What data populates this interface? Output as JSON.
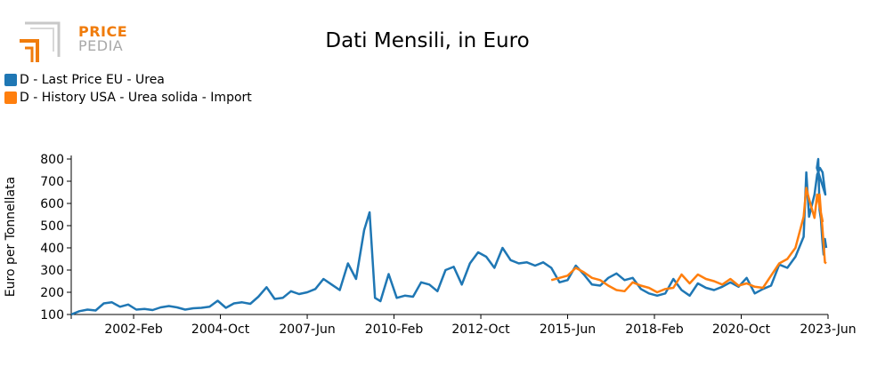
{
  "logo": {
    "line1": "PRICE",
    "line2": "PEDIA",
    "accent": "#f07c0c",
    "grey": "#a9a9a9"
  },
  "chart_data": {
    "type": "line",
    "title": "Dati Mensili, in Euro",
    "xlabel": "",
    "ylabel": "Euro per Tonnellata",
    "ylim": [
      100,
      800
    ],
    "yticks": [
      100,
      200,
      300,
      400,
      500,
      600,
      700,
      800
    ],
    "xlim": [
      "2000-03",
      "2023-06"
    ],
    "xticks": [
      {
        "label": "2002-Feb",
        "x": "2002-02"
      },
      {
        "label": "2004-Oct",
        "x": "2004-10"
      },
      {
        "label": "2007-Jun",
        "x": "2007-06"
      },
      {
        "label": "2010-Feb",
        "x": "2010-02"
      },
      {
        "label": "2012-Oct",
        "x": "2012-10"
      },
      {
        "label": "2015-Jun",
        "x": "2015-06"
      },
      {
        "label": "2018-Feb",
        "x": "2018-02"
      },
      {
        "label": "2020-Oct",
        "x": "2020-10"
      },
      {
        "label": "2023-Jun",
        "x": "2023-06"
      }
    ],
    "legend_position": "top-left",
    "grid": false,
    "series": [
      {
        "name": "D - Last Price EU - Urea",
        "color": "#1f77b4",
        "points": [
          [
            "2000-03",
            100
          ],
          [
            "2000-06",
            115
          ],
          [
            "2000-09",
            122
          ],
          [
            "2000-12",
            118
          ],
          [
            "2001-03",
            150
          ],
          [
            "2001-06",
            155
          ],
          [
            "2001-09",
            135
          ],
          [
            "2001-12",
            145
          ],
          [
            "2002-03",
            122
          ],
          [
            "2002-06",
            125
          ],
          [
            "2002-09",
            120
          ],
          [
            "2002-12",
            132
          ],
          [
            "2003-03",
            138
          ],
          [
            "2003-06",
            132
          ],
          [
            "2003-09",
            122
          ],
          [
            "2003-12",
            128
          ],
          [
            "2004-03",
            130
          ],
          [
            "2004-06",
            135
          ],
          [
            "2004-09",
            162
          ],
          [
            "2004-12",
            130
          ],
          [
            "2005-03",
            150
          ],
          [
            "2005-06",
            155
          ],
          [
            "2005-09",
            148
          ],
          [
            "2005-12",
            180
          ],
          [
            "2006-03",
            223
          ],
          [
            "2006-06",
            170
          ],
          [
            "2006-09",
            175
          ],
          [
            "2006-12",
            205
          ],
          [
            "2007-03",
            192
          ],
          [
            "2007-06",
            200
          ],
          [
            "2007-09",
            215
          ],
          [
            "2007-12",
            260
          ],
          [
            "2008-03",
            235
          ],
          [
            "2008-06",
            210
          ],
          [
            "2008-09",
            330
          ],
          [
            "2008-12",
            260
          ],
          [
            "2009-03",
            480
          ],
          [
            "2009-05",
            560
          ],
          [
            "2009-07",
            175
          ],
          [
            "2009-09",
            160
          ],
          [
            "2009-12",
            282
          ],
          [
            "2010-03",
            175
          ],
          [
            "2010-06",
            185
          ],
          [
            "2010-09",
            180
          ],
          [
            "2010-12",
            245
          ],
          [
            "2011-03",
            235
          ],
          [
            "2011-06",
            205
          ],
          [
            "2011-09",
            300
          ],
          [
            "2011-12",
            315
          ],
          [
            "2012-03",
            235
          ],
          [
            "2012-06",
            330
          ],
          [
            "2012-09",
            380
          ],
          [
            "2012-12",
            360
          ],
          [
            "2013-03",
            310
          ],
          [
            "2013-06",
            400
          ],
          [
            "2013-09",
            345
          ],
          [
            "2013-12",
            330
          ],
          [
            "2014-03",
            335
          ],
          [
            "2014-06",
            320
          ],
          [
            "2014-09",
            335
          ],
          [
            "2014-12",
            310
          ],
          [
            "2015-03",
            245
          ],
          [
            "2015-06",
            255
          ],
          [
            "2015-09",
            320
          ],
          [
            "2015-12",
            280
          ],
          [
            "2016-03",
            235
          ],
          [
            "2016-06",
            230
          ],
          [
            "2016-09",
            265
          ],
          [
            "2016-12",
            285
          ],
          [
            "2017-03",
            255
          ],
          [
            "2017-06",
            265
          ],
          [
            "2017-09",
            215
          ],
          [
            "2017-12",
            195
          ],
          [
            "2018-03",
            185
          ],
          [
            "2018-06",
            195
          ],
          [
            "2018-09",
            260
          ],
          [
            "2018-12",
            210
          ],
          [
            "2019-03",
            185
          ],
          [
            "2019-06",
            240
          ],
          [
            "2019-09",
            220
          ],
          [
            "2019-12",
            210
          ],
          [
            "2020-03",
            225
          ],
          [
            "2020-06",
            245
          ],
          [
            "2020-09",
            225
          ],
          [
            "2020-12",
            265
          ],
          [
            "2021-03",
            195
          ],
          [
            "2021-06",
            215
          ],
          [
            "2021-09",
            230
          ],
          [
            "2021-12",
            325
          ],
          [
            "2022-03",
            310
          ],
          [
            "2022-06",
            360
          ],
          [
            "2022-09",
            450
          ],
          [
            "2022-10",
            740
          ],
          [
            "2022-11",
            540
          ],
          [
            "2023-01",
            640
          ],
          [
            "2023-02",
            730
          ],
          [
            "2023-03",
            760
          ],
          [
            "2023-04",
            740
          ],
          [
            "2023-05",
            640
          ],
          [
            "2023-06",
            760
          ],
          [
            "2023-07",
            800
          ],
          [
            "2023-08",
            570
          ],
          [
            "2023-09",
            530
          ],
          [
            "2023-10",
            440
          ],
          [
            "2023-11",
            370
          ],
          [
            "2023-12",
            440
          ],
          [
            "2024-01",
            400
          ]
        ]
      },
      {
        "name": "D - History USA - Urea solida - Import",
        "color": "#ff7f0e",
        "points": [
          [
            "2014-12",
            255
          ],
          [
            "2015-03",
            265
          ],
          [
            "2015-06",
            275
          ],
          [
            "2015-09",
            310
          ],
          [
            "2015-12",
            290
          ],
          [
            "2016-03",
            265
          ],
          [
            "2016-06",
            255
          ],
          [
            "2016-09",
            230
          ],
          [
            "2016-12",
            210
          ],
          [
            "2017-03",
            205
          ],
          [
            "2017-06",
            245
          ],
          [
            "2017-09",
            230
          ],
          [
            "2017-12",
            220
          ],
          [
            "2018-03",
            200
          ],
          [
            "2018-06",
            215
          ],
          [
            "2018-09",
            220
          ],
          [
            "2018-12",
            280
          ],
          [
            "2019-03",
            240
          ],
          [
            "2019-06",
            280
          ],
          [
            "2019-09",
            260
          ],
          [
            "2019-12",
            250
          ],
          [
            "2020-03",
            235
          ],
          [
            "2020-06",
            260
          ],
          [
            "2020-09",
            230
          ],
          [
            "2020-12",
            240
          ],
          [
            "2021-03",
            225
          ],
          [
            "2021-06",
            220
          ],
          [
            "2021-09",
            275
          ],
          [
            "2021-12",
            330
          ],
          [
            "2022-03",
            350
          ],
          [
            "2022-06",
            400
          ],
          [
            "2022-09",
            540
          ],
          [
            "2022-10",
            670
          ],
          [
            "2022-11",
            620
          ],
          [
            "2023-01",
            535
          ],
          [
            "2023-02",
            640
          ],
          [
            "2023-04",
            520
          ],
          [
            "2023-06",
            620
          ],
          [
            "2023-08",
            640
          ],
          [
            "2023-09",
            560
          ],
          [
            "2023-10",
            500
          ],
          [
            "2023-11",
            420
          ],
          [
            "2023-12",
            335
          ],
          [
            "2024-01",
            330
          ]
        ]
      }
    ]
  }
}
